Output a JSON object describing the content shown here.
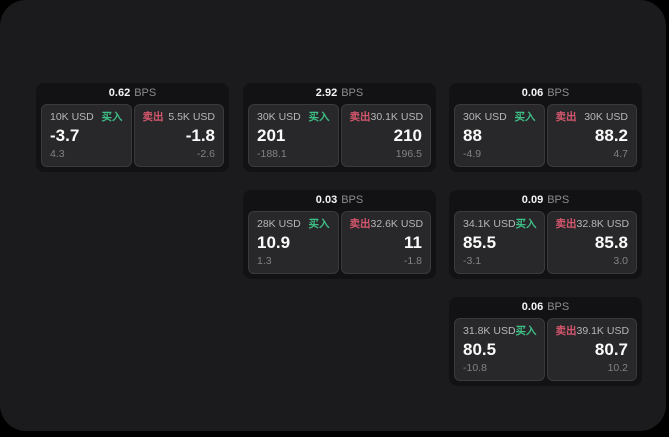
{
  "labels": {
    "unit": "BPS",
    "buy": "买入",
    "sell": "卖出"
  },
  "colors": {
    "buy_accent": "#3DBF85",
    "sell_accent": "#D5566D",
    "panel_background": "#1B1B1D",
    "card_background": "#121214",
    "tile_background": "#28282A"
  },
  "cards": [
    {
      "bps": "0.62",
      "buy": {
        "amount": "10K USD",
        "price": "-3.7",
        "change": "4.3"
      },
      "sell": {
        "amount": "5.5K USD",
        "price": "-1.8",
        "change": "-2.6"
      }
    },
    {
      "bps": "2.92",
      "buy": {
        "amount": "30K USD",
        "price": "201",
        "change": "-188.1"
      },
      "sell": {
        "amount": "30.1K USD",
        "price": "210",
        "change": "196.5"
      }
    },
    {
      "bps": "0.06",
      "buy": {
        "amount": "30K USD",
        "price": "88",
        "change": "-4.9"
      },
      "sell": {
        "amount": "30K USD",
        "price": "88.2",
        "change": "4.7"
      }
    },
    {
      "bps": "0.03",
      "buy": {
        "amount": "28K USD",
        "price": "10.9",
        "change": "1.3"
      },
      "sell": {
        "amount": "32.6K USD",
        "price": "11",
        "change": "-1.8"
      }
    },
    {
      "bps": "0.09",
      "buy": {
        "amount": "34.1K USD",
        "price": "85.5",
        "change": "-3.1"
      },
      "sell": {
        "amount": "32.8K USD",
        "price": "85.8",
        "change": "3.0"
      }
    },
    {
      "bps": "0.06",
      "buy": {
        "amount": "31.8K USD",
        "price": "80.5",
        "change": "-10.8"
      },
      "sell": {
        "amount": "39.1K USD",
        "price": "80.7",
        "change": "10.2"
      }
    }
  ]
}
